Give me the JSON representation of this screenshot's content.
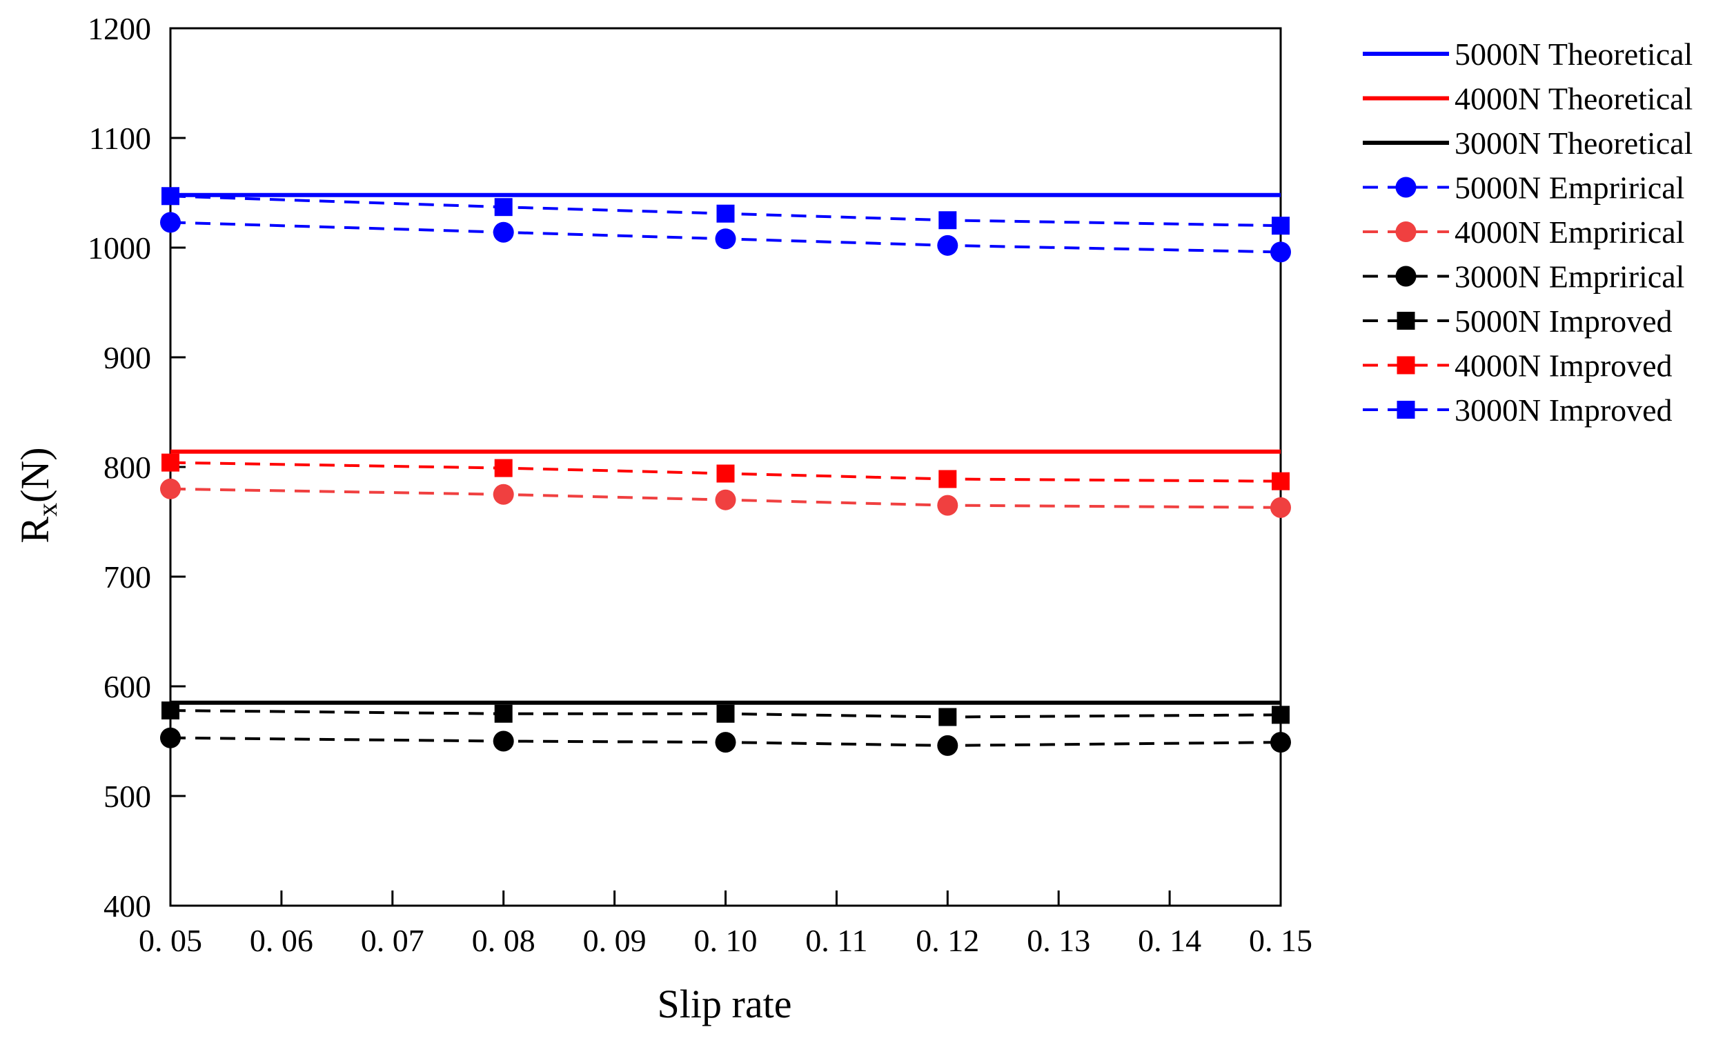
{
  "chart_data": {
    "type": "line",
    "title": "",
    "xlabel": "Slip rate",
    "ylabel": {
      "base": "R",
      "sub": "x",
      "suffix": "(N)"
    },
    "xlim": [
      0.05,
      0.15
    ],
    "ylim": [
      400,
      1200
    ],
    "grid": false,
    "legend_position": "outside-right",
    "x_ticks": [
      0.05,
      0.06,
      0.07,
      0.08,
      0.09,
      0.1,
      0.11,
      0.12,
      0.13,
      0.14,
      0.15
    ],
    "x_tick_labels": [
      "0. 05",
      "0. 06",
      "0. 07",
      "0. 08",
      "0. 09",
      "0. 10",
      "0. 11",
      "0. 12",
      "0. 13",
      "0. 14",
      "0. 15"
    ],
    "y_ticks": [
      400,
      500,
      600,
      700,
      800,
      900,
      1000,
      1100,
      1200
    ],
    "y_tick_labels": [
      "400",
      "500",
      "600",
      "700",
      "800",
      "900",
      "1000",
      "1100",
      "1200"
    ],
    "x": [
      0.05,
      0.08,
      0.1,
      0.12,
      0.15
    ],
    "series": [
      {
        "name": "5000N Theoretical",
        "color": "#0000ff",
        "style": "solid",
        "marker": "none",
        "values": [
          1048,
          1048,
          1048,
          1048,
          1048
        ]
      },
      {
        "name": "4000N Theoretical",
        "color": "#ff0000",
        "style": "solid",
        "marker": "none",
        "values": [
          814,
          814,
          814,
          814,
          814
        ]
      },
      {
        "name": "3000N Theoretical",
        "color": "#000000",
        "style": "solid",
        "marker": "none",
        "values": [
          585,
          585,
          585,
          585,
          585
        ]
      },
      {
        "name": "5000N Emprirical",
        "color": "#0000ff",
        "style": "dashed",
        "marker": "circle",
        "values": [
          1023,
          1014,
          1008,
          1002,
          996
        ]
      },
      {
        "name": "4000N Emprirical",
        "color": "#f04040",
        "style": "dashed",
        "marker": "circle",
        "values": [
          780,
          775,
          770,
          765,
          763
        ]
      },
      {
        "name": "3000N Emprirical",
        "color": "#000000",
        "style": "dashed",
        "marker": "circle",
        "values": [
          553,
          550,
          549,
          546,
          549
        ]
      },
      {
        "name": "5000N Improved",
        "color": "#000000",
        "style": "dashed",
        "marker": "square",
        "values": [
          578,
          575,
          575,
          572,
          574
        ]
      },
      {
        "name": "4000N Improved",
        "color": "#ff0000",
        "style": "dashed",
        "marker": "square",
        "values": [
          804,
          799,
          794,
          789,
          787
        ]
      },
      {
        "name": "3000N Improved",
        "color": "#0000ff",
        "style": "dashed",
        "marker": "square",
        "values": [
          1047,
          1037,
          1031,
          1025,
          1020
        ]
      }
    ]
  }
}
